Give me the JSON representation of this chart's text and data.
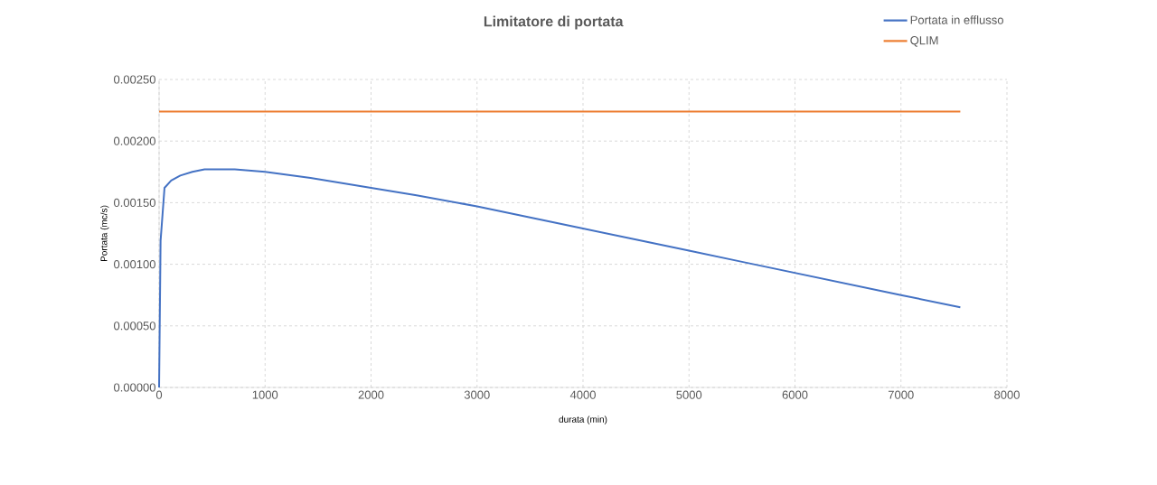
{
  "chart_data": {
    "type": "line",
    "title": "Limitatore di portata",
    "xlabel": "durata (min)",
    "ylabel": "Portata (mc/s)",
    "xlim": [
      0,
      8000
    ],
    "xticks": [
      0,
      1000,
      2000,
      3000,
      4000,
      5000,
      6000,
      7000,
      8000
    ],
    "ylim": [
      0,
      0.0025
    ],
    "yticks": [
      {
        "value": 0,
        "label": "0.00000"
      },
      {
        "value": 0.0005,
        "label": "0.00050"
      },
      {
        "value": 0.001,
        "label": "0.00100"
      },
      {
        "value": 0.0015,
        "label": "0.00150"
      },
      {
        "value": 0.002,
        "label": "0.00200"
      },
      {
        "value": 0.0025,
        "label": "0.00250"
      }
    ],
    "grid": true,
    "legend": "top right",
    "marker": "none",
    "line_style": "solid",
    "series": [
      {
        "name": "Portata in efflusso",
        "color": "#4472c4",
        "x": [
          0,
          14,
          51,
          114,
          200,
          314,
          429,
          714,
          1000,
          1429,
          2000,
          2429,
          3000,
          3500,
          4000,
          4500,
          5000,
          5500,
          6000,
          6500,
          7000,
          7560
        ],
        "values": [
          0,
          0.00119,
          0.00162,
          0.00168,
          0.00172,
          0.00175,
          0.00177,
          0.00177,
          0.00175,
          0.0017,
          0.00162,
          0.00156,
          0.00147,
          0.00138,
          0.00129,
          0.0012,
          0.00111,
          0.00102,
          0.00093,
          0.00084,
          0.00075,
          0.00065
        ]
      },
      {
        "name": "QLIM",
        "color": "#ed7d31",
        "x": [
          0,
          7560
        ],
        "values": [
          0.00224,
          0.00224
        ]
      }
    ]
  }
}
